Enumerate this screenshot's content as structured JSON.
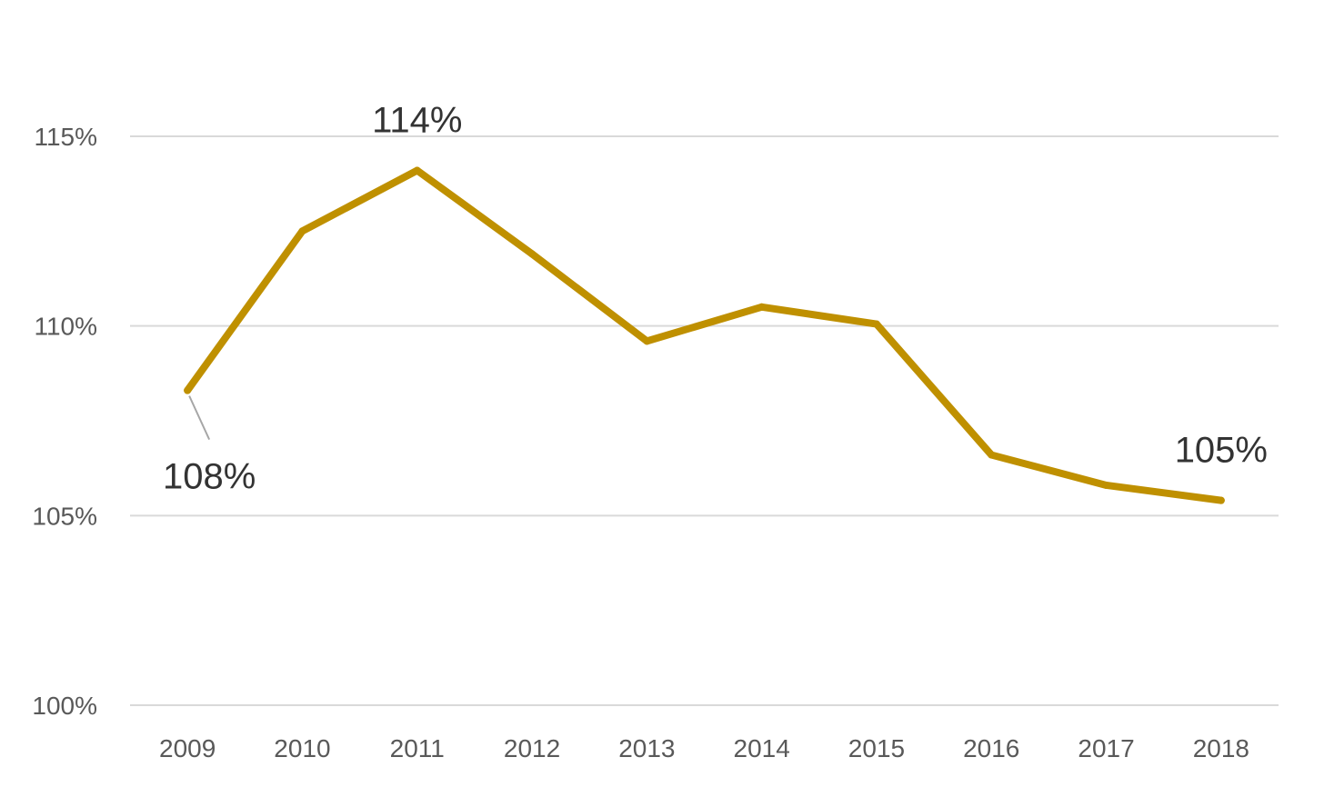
{
  "chart_data": {
    "type": "line",
    "title": "",
    "xlabel": "",
    "ylabel": "",
    "categories": [
      "2009",
      "2010",
      "2011",
      "2012",
      "2013",
      "2014",
      "2015",
      "2016",
      "2017",
      "2018"
    ],
    "series": [
      {
        "values": [
          108.3,
          112.5,
          114.1,
          111.9,
          109.6,
          110.5,
          110.05,
          106.6,
          105.8,
          105.4
        ]
      }
    ],
    "ylim": [
      100,
      115
    ],
    "yticks": [
      "100%",
      "105%",
      "110%",
      "115%"
    ],
    "grid": true,
    "legend": "none",
    "line_color": "#bf9000",
    "data_labels": [
      {
        "index": 0,
        "text": "108%"
      },
      {
        "index": 2,
        "text": "114%"
      },
      {
        "index": 9,
        "text": "105%"
      }
    ]
  }
}
